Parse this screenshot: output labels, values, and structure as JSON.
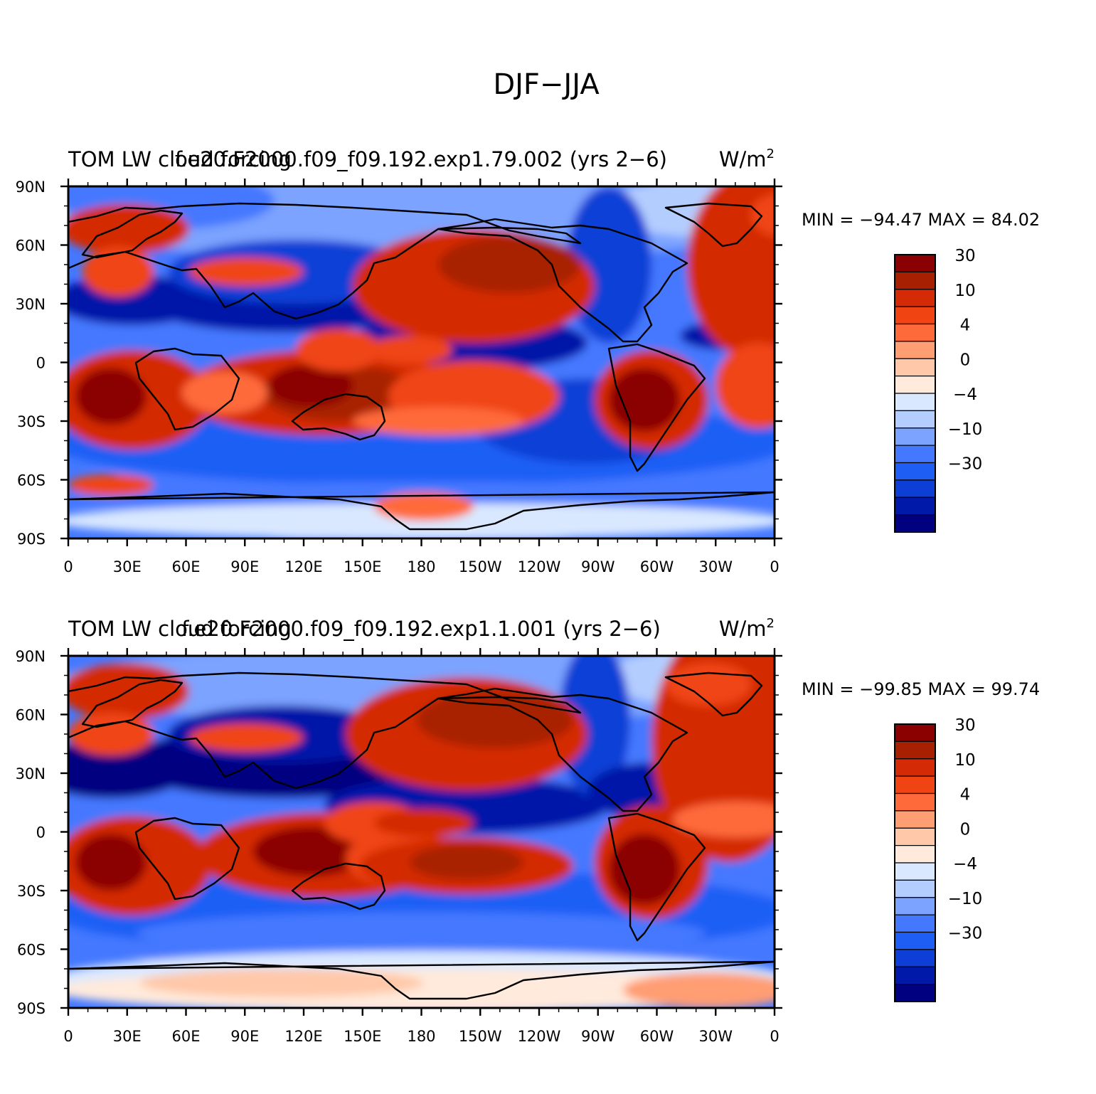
{
  "figure": {
    "main_title": "DJF−JJA"
  },
  "panels": [
    {
      "left_title": "TOM LW cloud forcing",
      "center_title": "f.e20.F2000.f09_f09.192.exp1.79.002 (yrs 2−6)",
      "units": "W/m",
      "units_sup": "2",
      "minmax": "MIN = −94.47  MAX =   84.02"
    },
    {
      "left_title": "TOM LW cloud forcing",
      "center_title": "f.e20.F2000.f09_f09.192.exp1.1.001 (yrs 2−6)",
      "units": "W/m",
      "units_sup": "2",
      "minmax": "MIN = −99.85  MAX =   99.74"
    }
  ],
  "axes": {
    "lat_labels": [
      "90N",
      "60N",
      "30N",
      "0",
      "30S",
      "60S",
      "90S"
    ],
    "lon_labels": [
      "0",
      "30E",
      "60E",
      "90E",
      "120E",
      "150E",
      "180",
      "150W",
      "120W",
      "90W",
      "60W",
      "30W",
      "0"
    ]
  },
  "colorbar": {
    "colors": [
      "#000080",
      "#0019a8",
      "#0d3fd6",
      "#1f5ef5",
      "#4478ff",
      "#7ba3ff",
      "#b4cdff",
      "#d9e8ff",
      "#ffeadb",
      "#ffc8a8",
      "#ff9d73",
      "#ff6a3a",
      "#f04412",
      "#d42a05",
      "#a82002",
      "#8b0000"
    ],
    "labels": [
      "−30",
      "−10",
      "−4",
      "0",
      "4",
      "10",
      "30"
    ]
  }
}
